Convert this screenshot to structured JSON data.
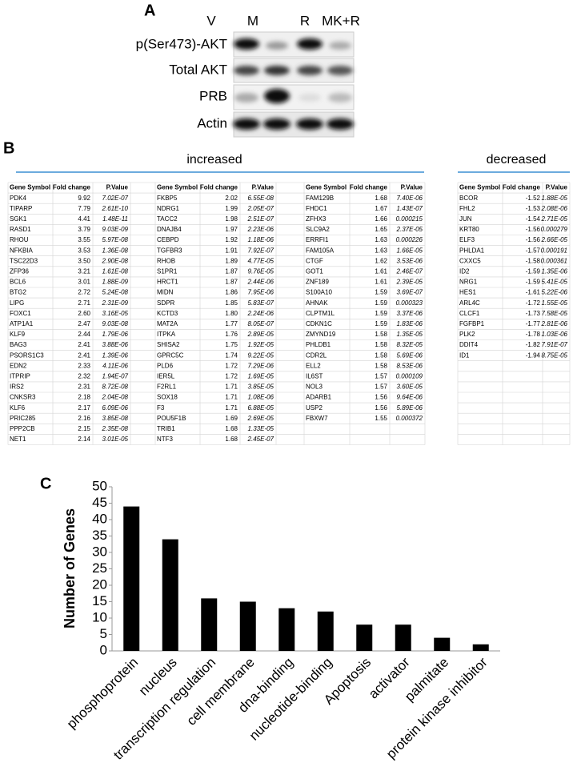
{
  "panel_a": {
    "label": "A",
    "lanes": [
      "V",
      "M",
      "R",
      "MK+R"
    ],
    "rows": [
      "p(Ser473)-AKT",
      "Total AKT",
      "PRB",
      "Actin"
    ]
  },
  "panel_b": {
    "label": "B",
    "increased": "increased",
    "decreased": "decreased",
    "columns": [
      "Gene Symbol",
      "Fold change",
      "P.Value"
    ],
    "groups": [
      {
        "rows": [
          [
            "PDK4",
            "9.92",
            "7.02E-07"
          ],
          [
            "TIPARP",
            "7.79",
            "2.61E-10"
          ],
          [
            "SGK1",
            "4.41",
            "1.48E-11"
          ],
          [
            "RASD1",
            "3.79",
            "9.03E-09"
          ],
          [
            "RHOU",
            "3.55",
            "5.97E-08"
          ],
          [
            "NFKBIA",
            "3.53",
            "1.36E-08"
          ],
          [
            "TSC22D3",
            "3.50",
            "2.90E-08"
          ],
          [
            "ZFP36",
            "3.21",
            "1.61E-08"
          ],
          [
            "BCL6",
            "3.01",
            "1.88E-09"
          ],
          [
            "BTG2",
            "2.72",
            "5.24E-08"
          ],
          [
            "LIPG",
            "2.71",
            "2.31E-09"
          ],
          [
            "FOXC1",
            "2.60",
            "3.16E-05"
          ],
          [
            "ATP1A1",
            "2.47",
            "9.03E-08"
          ],
          [
            "KLF9",
            "2.44",
            "1.79E-06"
          ],
          [
            "BAG3",
            "2.41",
            "3.88E-06"
          ],
          [
            "PSORS1C3",
            "2.41",
            "1.39E-06"
          ],
          [
            "EDN2",
            "2.33",
            "4.11E-06"
          ],
          [
            "ITPRIP",
            "2.32",
            "1.94E-07"
          ],
          [
            "IRS2",
            "2.31",
            "8.72E-08"
          ],
          [
            "CNKSR3",
            "2.18",
            "2.04E-08"
          ],
          [
            "KLF6",
            "2.17",
            "6.09E-06"
          ],
          [
            "PRIC285",
            "2.16",
            "3.85E-08"
          ],
          [
            "PPP2CB",
            "2.15",
            "2.35E-08"
          ],
          [
            "NET1",
            "2.14",
            "3.01E-05"
          ]
        ]
      },
      {
        "rows": [
          [
            "FKBP5",
            "2.02",
            "6.55E-08"
          ],
          [
            "NDRG1",
            "1.99",
            "2.05E-07"
          ],
          [
            "TACC2",
            "1.98",
            "2.51E-07"
          ],
          [
            "DNAJB4",
            "1.97",
            "2.23E-06"
          ],
          [
            "CEBPD",
            "1.92",
            "1.18E-06"
          ],
          [
            "TGFBR3",
            "1.91",
            "7.92E-07"
          ],
          [
            "RHOB",
            "1.89",
            "4.77E-05"
          ],
          [
            "S1PR1",
            "1.87",
            "9.76E-05"
          ],
          [
            "HRCT1",
            "1.87",
            "2.44E-06"
          ],
          [
            "MIDN",
            "1.86",
            "7.95E-06"
          ],
          [
            "SDPR",
            "1.85",
            "5.83E-07"
          ],
          [
            "KCTD3",
            "1.80",
            "2.24E-06"
          ],
          [
            "MAT2A",
            "1.77",
            "8.05E-07"
          ],
          [
            "ITPKA",
            "1.76",
            "2.89E-05"
          ],
          [
            "SHISA2",
            "1.75",
            "1.92E-05"
          ],
          [
            "GPRC5C",
            "1.74",
            "9.22E-05"
          ],
          [
            "PLD6",
            "1.72",
            "7.29E-06"
          ],
          [
            "IER5L",
            "1.72",
            "1.69E-05"
          ],
          [
            "F2RL1",
            "1.71",
            "3.85E-05"
          ],
          [
            "SOX18",
            "1.71",
            "1.08E-06"
          ],
          [
            "F3",
            "1.71",
            "6.88E-05"
          ],
          [
            "POU5F1B",
            "1.69",
            "2.69E-05"
          ],
          [
            "TRIB1",
            "1.68",
            "1.33E-05"
          ],
          [
            "NTF3",
            "1.68",
            "2.45E-07"
          ]
        ]
      },
      {
        "rows": [
          [
            "FAM129B",
            "1.68",
            "7.40E-06"
          ],
          [
            "FHDC1",
            "1.67",
            "1.43E-07"
          ],
          [
            "ZFHX3",
            "1.66",
            "0.000215"
          ],
          [
            "SLC9A2",
            "1.65",
            "2.37E-05"
          ],
          [
            "ERRFI1",
            "1.63",
            "0.000226"
          ],
          [
            "FAM105A",
            "1.63",
            "1.66E-05"
          ],
          [
            "CTGF",
            "1.62",
            "3.53E-06"
          ],
          [
            "GOT1",
            "1.61",
            "2.46E-07"
          ],
          [
            "ZNF189",
            "1.61",
            "2.39E-05"
          ],
          [
            "S100A10",
            "1.59",
            "3.69E-07"
          ],
          [
            "AHNAK",
            "1.59",
            "0.000323"
          ],
          [
            "CLPTM1L",
            "1.59",
            "3.37E-06"
          ],
          [
            "CDKN1C",
            "1.59",
            "1.83E-06"
          ],
          [
            "ZMYND19",
            "1.58",
            "1.35E-05"
          ],
          [
            "PHLDB1",
            "1.58",
            "8.32E-05"
          ],
          [
            "CDR2L",
            "1.58",
            "5.69E-06"
          ],
          [
            "ELL2",
            "1.58",
            "8.53E-06"
          ],
          [
            "IL6ST",
            "1.57",
            "0.000109"
          ],
          [
            "NOL3",
            "1.57",
            "3.60E-05"
          ],
          [
            "ADARB1",
            "1.56",
            "9.64E-06"
          ],
          [
            "USP2",
            "1.56",
            "5.89E-06"
          ],
          [
            "FBXW7",
            "1.55",
            "0.000372"
          ]
        ]
      },
      {
        "rows": [
          [
            "BCOR",
            "-1.52",
            "1.88E-05"
          ],
          [
            "FHL2",
            "-1.53",
            "2.08E-06"
          ],
          [
            "JUN",
            "-1.54",
            "2.71E-05"
          ],
          [
            "KRT80",
            "-1.56",
            "0.000279"
          ],
          [
            "ELF3",
            "-1.56",
            "2.66E-05"
          ],
          [
            "PHLDA1",
            "-1.57",
            "0.000191"
          ],
          [
            "CXXC5",
            "-1.58",
            "0.000361"
          ],
          [
            "ID2",
            "-1.59",
            "1.35E-06"
          ],
          [
            "NRG1",
            "-1.59",
            "5.41E-05"
          ],
          [
            "HES1",
            "-1.61",
            "5.22E-06"
          ],
          [
            "ARL4C",
            "-1.72",
            "1.55E-05"
          ],
          [
            "CLCF1",
            "-1.73",
            "7.58E-05"
          ],
          [
            "FGFBP1",
            "-1.77",
            "2.81E-06"
          ],
          [
            "PLK2",
            "-1.78",
            "1.03E-06"
          ],
          [
            "DDIT4",
            "-1.82",
            "7.91E-07"
          ],
          [
            "ID1",
            "-1.94",
            "8.75E-05"
          ]
        ]
      }
    ]
  },
  "chart_data": {
    "type": "bar",
    "panel_label": "C",
    "ylabel": "Number of Genes",
    "categories": [
      "phosphoprotein",
      "nucleus",
      "transcription regulation",
      "cell membrane",
      "dna-binding",
      "nucleotide-binding",
      "Apoptosis",
      "activator",
      "palmitate",
      "protein kinase inhibitor"
    ],
    "values": [
      44,
      34,
      16,
      15,
      13,
      12,
      8,
      8,
      4,
      2
    ],
    "color": "#000000",
    "ylim": [
      0,
      50
    ],
    "yticks": [
      0,
      5,
      10,
      15,
      20,
      25,
      30,
      35,
      40,
      45,
      50
    ]
  }
}
